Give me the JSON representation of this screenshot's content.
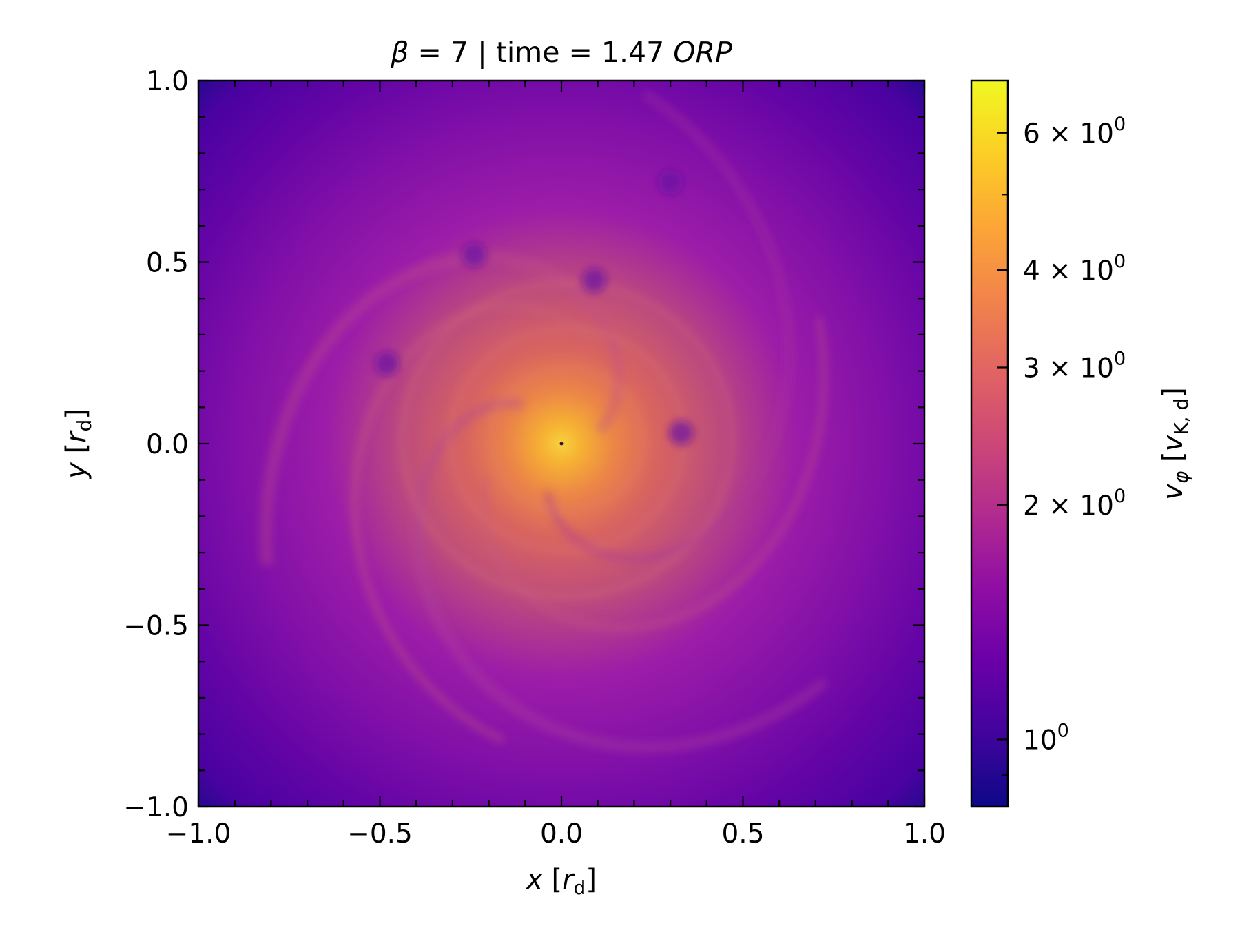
{
  "chart_data": {
    "type": "heatmap",
    "title": "β = 7 | time = 1.47 ORP",
    "title_parts": {
      "beta_symbol": "β",
      "beta_text": " = 7 | time = 1.47 ",
      "unit_italic": "ORP"
    },
    "xlabel": "x [r_d]",
    "xlabel_parts": {
      "var": "x",
      "open": " [",
      "unit": "r",
      "sub": "d",
      "close": "]"
    },
    "ylabel": "y [r_d]",
    "ylabel_parts": {
      "var": "y",
      "open": " [",
      "unit": "r",
      "sub": "d",
      "close": "]"
    },
    "xlim": [
      -1.0,
      1.0
    ],
    "ylim": [
      -1.0,
      1.0
    ],
    "x_ticks": [
      -1.0,
      -0.5,
      0.0,
      0.5,
      1.0
    ],
    "x_tick_labels": [
      "−1.0",
      "−0.5",
      "0.0",
      "0.5",
      "1.0"
    ],
    "y_ticks": [
      -1.0,
      -0.5,
      0.0,
      0.5,
      1.0
    ],
    "y_tick_labels": [
      "−1.0",
      "−0.5",
      "0.0",
      "0.5",
      "1.0"
    ],
    "colormap": "plasma",
    "colorbar": {
      "label": "v_φ [v_K,d]",
      "label_parts": {
        "var": "v",
        "var_sub": "φ",
        "open": " [",
        "unit": "v",
        "unit_sub": "K, d",
        "close": "]"
      },
      "scale": "log",
      "range": [
        0.82,
        7.0
      ],
      "ticks": [
        {
          "value": 1,
          "mantissa": "",
          "exponent": "0"
        },
        {
          "value": 2,
          "mantissa": "2",
          "exponent": "0"
        },
        {
          "value": 3,
          "mantissa": "3",
          "exponent": "0"
        },
        {
          "value": 4,
          "mantissa": "4",
          "exponent": "0"
        },
        {
          "value": 6,
          "mantissa": "6",
          "exponent": "0"
        }
      ],
      "times_symbol": "×",
      "base": "10",
      "minor_ticks": [
        0.9,
        5,
        7
      ]
    },
    "field": {
      "description_values": "azimuthal velocity magnitude, peak at centre decaying outward",
      "center": [
        0.0,
        0.0
      ],
      "peak_value": 7.0,
      "edge_value": 0.82,
      "vortices": [
        [
          -0.48,
          0.22
        ],
        [
          0.33,
          0.03
        ],
        [
          0.09,
          0.45
        ],
        [
          -0.24,
          0.52
        ],
        [
          0.3,
          0.72
        ]
      ]
    }
  }
}
